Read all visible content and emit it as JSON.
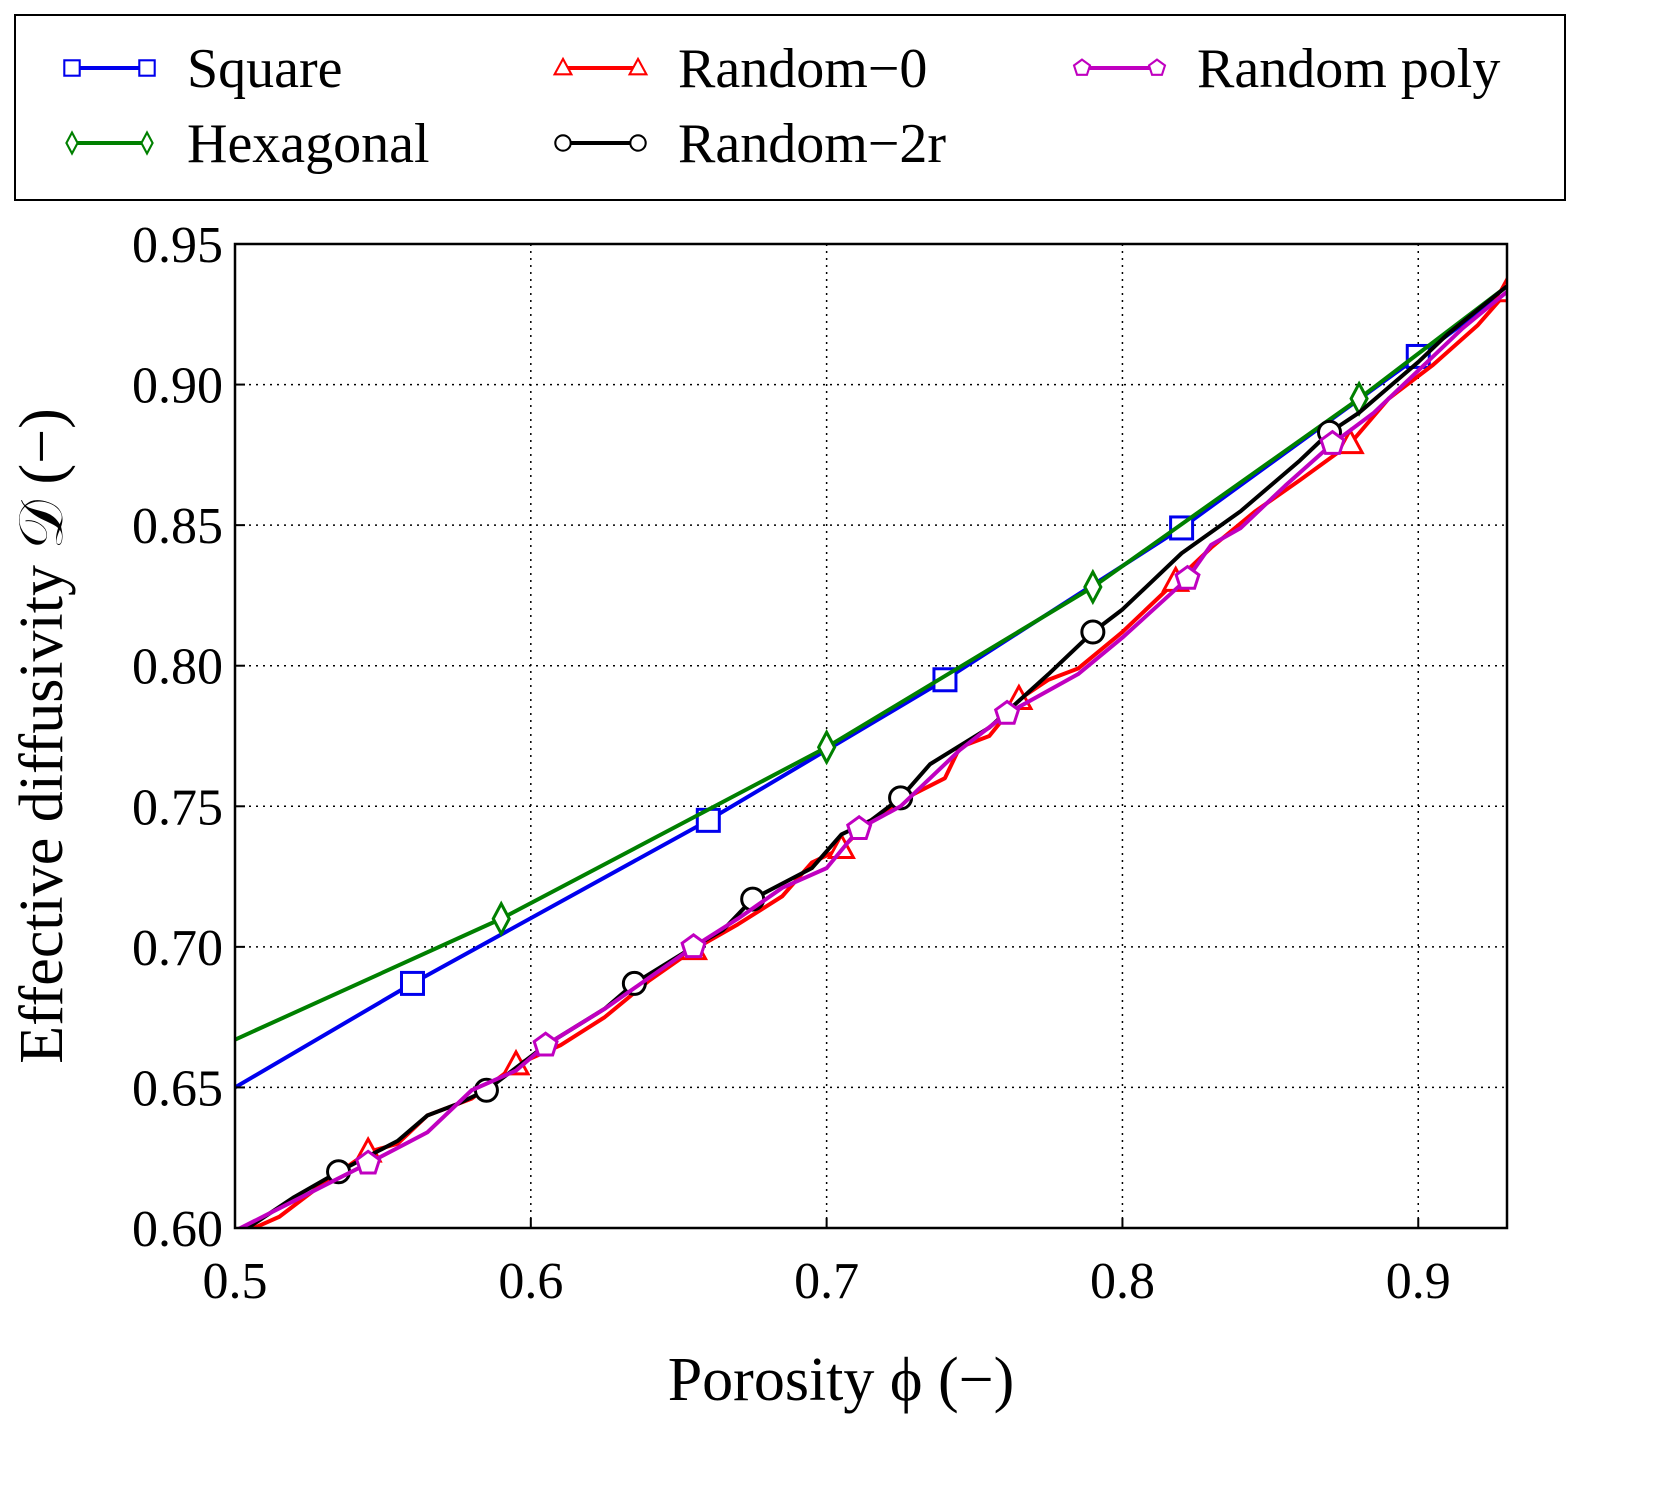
{
  "chart_data": {
    "type": "line",
    "title": "",
    "xlabel": "Porosity ϕ (−)",
    "ylabel": "Effective diffusivity 𝒟 (−)",
    "xlim": [
      0.5,
      0.93
    ],
    "ylim": [
      0.6,
      0.95
    ],
    "xticks": [
      0.5,
      0.6,
      0.7,
      0.8,
      0.9
    ],
    "xtick_labels": [
      "0.5",
      "0.6",
      "0.7",
      "0.8",
      "0.9"
    ],
    "yticks": [
      0.6,
      0.65,
      0.7,
      0.75,
      0.8,
      0.85,
      0.9,
      0.95
    ],
    "ytick_labels": [
      "0.60",
      "0.65",
      "0.70",
      "0.75",
      "0.80",
      "0.85",
      "0.90",
      "0.95"
    ],
    "grid": true,
    "legend_placement": "top, outside",
    "series": [
      {
        "name": "Square",
        "color": "#0000ee",
        "marker": "square",
        "points": [
          [
            0.5,
            0.65
          ],
          [
            0.56,
            0.687
          ],
          [
            0.66,
            0.745
          ],
          [
            0.74,
            0.795
          ],
          [
            0.82,
            0.849
          ],
          [
            0.9,
            0.91
          ],
          [
            0.93,
            0.933
          ]
        ],
        "markers": [
          [
            0.56,
            0.687
          ],
          [
            0.66,
            0.745
          ],
          [
            0.74,
            0.795
          ],
          [
            0.82,
            0.849
          ],
          [
            0.9,
            0.91
          ]
        ]
      },
      {
        "name": "Hexagonal",
        "color": "#008000",
        "marker": "diamond",
        "points": [
          [
            0.5,
            0.667
          ],
          [
            0.59,
            0.71
          ],
          [
            0.7,
            0.771
          ],
          [
            0.79,
            0.828
          ],
          [
            0.88,
            0.895
          ],
          [
            0.93,
            0.935
          ]
        ],
        "markers": [
          [
            0.59,
            0.71
          ],
          [
            0.7,
            0.771
          ],
          [
            0.79,
            0.828
          ],
          [
            0.88,
            0.895
          ]
        ]
      },
      {
        "name": "Random−0",
        "color": "#ff0000",
        "marker": "triangle",
        "points": [
          [
            0.5,
            0.597
          ],
          [
            0.515,
            0.604
          ],
          [
            0.53,
            0.616
          ],
          [
            0.545,
            0.627
          ],
          [
            0.555,
            0.63
          ],
          [
            0.565,
            0.64
          ],
          [
            0.58,
            0.646
          ],
          [
            0.595,
            0.658
          ],
          [
            0.61,
            0.665
          ],
          [
            0.625,
            0.675
          ],
          [
            0.64,
            0.688
          ],
          [
            0.655,
            0.699
          ],
          [
            0.67,
            0.708
          ],
          [
            0.685,
            0.718
          ],
          [
            0.695,
            0.73
          ],
          [
            0.705,
            0.735
          ],
          [
            0.715,
            0.745
          ],
          [
            0.725,
            0.752
          ],
          [
            0.74,
            0.76
          ],
          [
            0.745,
            0.771
          ],
          [
            0.755,
            0.775
          ],
          [
            0.765,
            0.788
          ],
          [
            0.775,
            0.795
          ],
          [
            0.785,
            0.799
          ],
          [
            0.8,
            0.812
          ],
          [
            0.818,
            0.83
          ],
          [
            0.83,
            0.842
          ],
          [
            0.845,
            0.855
          ],
          [
            0.86,
            0.866
          ],
          [
            0.877,
            0.879
          ],
          [
            0.89,
            0.895
          ],
          [
            0.905,
            0.907
          ],
          [
            0.92,
            0.921
          ],
          [
            0.93,
            0.933
          ]
        ],
        "markers": [
          [
            0.545,
            0.627
          ],
          [
            0.595,
            0.658
          ],
          [
            0.655,
            0.699
          ],
          [
            0.705,
            0.735
          ],
          [
            0.765,
            0.788
          ],
          [
            0.818,
            0.83
          ],
          [
            0.877,
            0.879
          ],
          [
            0.93,
            0.933
          ]
        ]
      },
      {
        "name": "Random−2r",
        "color": "#000000",
        "marker": "circle",
        "points": [
          [
            0.5,
            0.597
          ],
          [
            0.52,
            0.611
          ],
          [
            0.535,
            0.62
          ],
          [
            0.555,
            0.631
          ],
          [
            0.565,
            0.64
          ],
          [
            0.575,
            0.644
          ],
          [
            0.585,
            0.649
          ],
          [
            0.605,
            0.665
          ],
          [
            0.625,
            0.678
          ],
          [
            0.635,
            0.687
          ],
          [
            0.655,
            0.7
          ],
          [
            0.665,
            0.706
          ],
          [
            0.675,
            0.717
          ],
          [
            0.695,
            0.728
          ],
          [
            0.705,
            0.74
          ],
          [
            0.715,
            0.745
          ],
          [
            0.725,
            0.753
          ],
          [
            0.735,
            0.765
          ],
          [
            0.755,
            0.778
          ],
          [
            0.775,
            0.797
          ],
          [
            0.79,
            0.812
          ],
          [
            0.8,
            0.82
          ],
          [
            0.82,
            0.84
          ],
          [
            0.84,
            0.855
          ],
          [
            0.86,
            0.873
          ],
          [
            0.87,
            0.883
          ],
          [
            0.88,
            0.89
          ],
          [
            0.9,
            0.908
          ],
          [
            0.91,
            0.918
          ],
          [
            0.93,
            0.935
          ]
        ],
        "markers": [
          [
            0.535,
            0.62
          ],
          [
            0.585,
            0.649
          ],
          [
            0.635,
            0.687
          ],
          [
            0.675,
            0.717
          ],
          [
            0.725,
            0.753
          ],
          [
            0.79,
            0.812
          ],
          [
            0.87,
            0.883
          ]
        ]
      },
      {
        "name": "Random poly",
        "color": "#c000c0",
        "marker": "pentagon",
        "points": [
          [
            0.5,
            0.599
          ],
          [
            0.515,
            0.607
          ],
          [
            0.53,
            0.615
          ],
          [
            0.545,
            0.623
          ],
          [
            0.565,
            0.634
          ],
          [
            0.58,
            0.649
          ],
          [
            0.595,
            0.656
          ],
          [
            0.605,
            0.665
          ],
          [
            0.625,
            0.678
          ],
          [
            0.64,
            0.689
          ],
          [
            0.655,
            0.7
          ],
          [
            0.67,
            0.71
          ],
          [
            0.685,
            0.721
          ],
          [
            0.7,
            0.728
          ],
          [
            0.711,
            0.742
          ],
          [
            0.725,
            0.75
          ],
          [
            0.745,
            0.77
          ],
          [
            0.761,
            0.783
          ],
          [
            0.785,
            0.797
          ],
          [
            0.8,
            0.81
          ],
          [
            0.822,
            0.831
          ],
          [
            0.83,
            0.843
          ],
          [
            0.84,
            0.849
          ],
          [
            0.855,
            0.864
          ],
          [
            0.871,
            0.879
          ],
          [
            0.885,
            0.89
          ],
          [
            0.9,
            0.905
          ],
          [
            0.915,
            0.92
          ],
          [
            0.93,
            0.933
          ]
        ],
        "markers": [
          [
            0.545,
            0.623
          ],
          [
            0.605,
            0.665
          ],
          [
            0.655,
            0.7
          ],
          [
            0.711,
            0.742
          ],
          [
            0.761,
            0.783
          ],
          [
            0.822,
            0.831
          ],
          [
            0.871,
            0.879
          ]
        ]
      }
    ]
  }
}
